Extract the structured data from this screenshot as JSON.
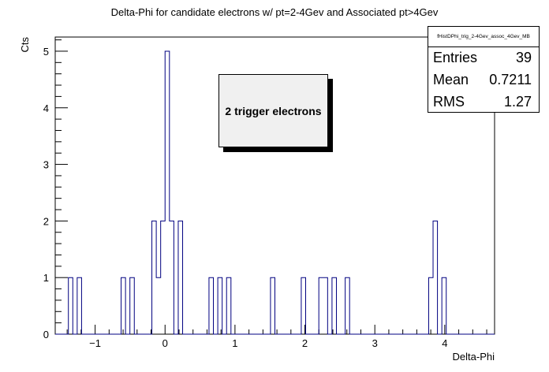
{
  "chart_data": {
    "type": "histogram",
    "title": "Delta-Phi for candidate electrons w/ pt=2-4Gev and Associated pt>4Gev",
    "xlabel": "Delta-Phi",
    "ylabel": "Cts",
    "xlim": [
      -1.5708,
      4.7124
    ],
    "ylim": [
      0,
      5.25
    ],
    "nbins": 100,
    "bin_edges_range": [
      -1.5708,
      4.7124
    ],
    "bin_counts": [
      0,
      0,
      0,
      1,
      0,
      1,
      0,
      0,
      0,
      0,
      0,
      0,
      0,
      0,
      0,
      1,
      0,
      1,
      0,
      0,
      0,
      0,
      2,
      1,
      2,
      5,
      2,
      0,
      2,
      0,
      0,
      0,
      0,
      0,
      0,
      1,
      0,
      1,
      0,
      1,
      0,
      0,
      0,
      0,
      0,
      0,
      0,
      0,
      0,
      1,
      0,
      0,
      0,
      0,
      0,
      0,
      1,
      0,
      0,
      0,
      1,
      1,
      0,
      1,
      0,
      0,
      1,
      0,
      0,
      0,
      0,
      0,
      0,
      0,
      0,
      0,
      0,
      0,
      0,
      0,
      0,
      0,
      0,
      0,
      0,
      1,
      2,
      0,
      1,
      0,
      0,
      0,
      0,
      0,
      0,
      0,
      0,
      0,
      0,
      0
    ],
    "x_ticks": [
      -1,
      0,
      1,
      2,
      3,
      4
    ],
    "y_ticks": [
      0,
      1,
      2,
      3,
      4,
      5
    ],
    "line_color": "#000080"
  },
  "stats": {
    "name": "fHistDPhi_trig_2-4Gev_assoc_4Gev_MB",
    "rows": [
      {
        "key": "Entries",
        "value": "39"
      },
      {
        "key": "Mean",
        "value": "0.7211"
      },
      {
        "key": "RMS",
        "value": "1.27"
      }
    ]
  },
  "annotation": "2 trigger electrons"
}
